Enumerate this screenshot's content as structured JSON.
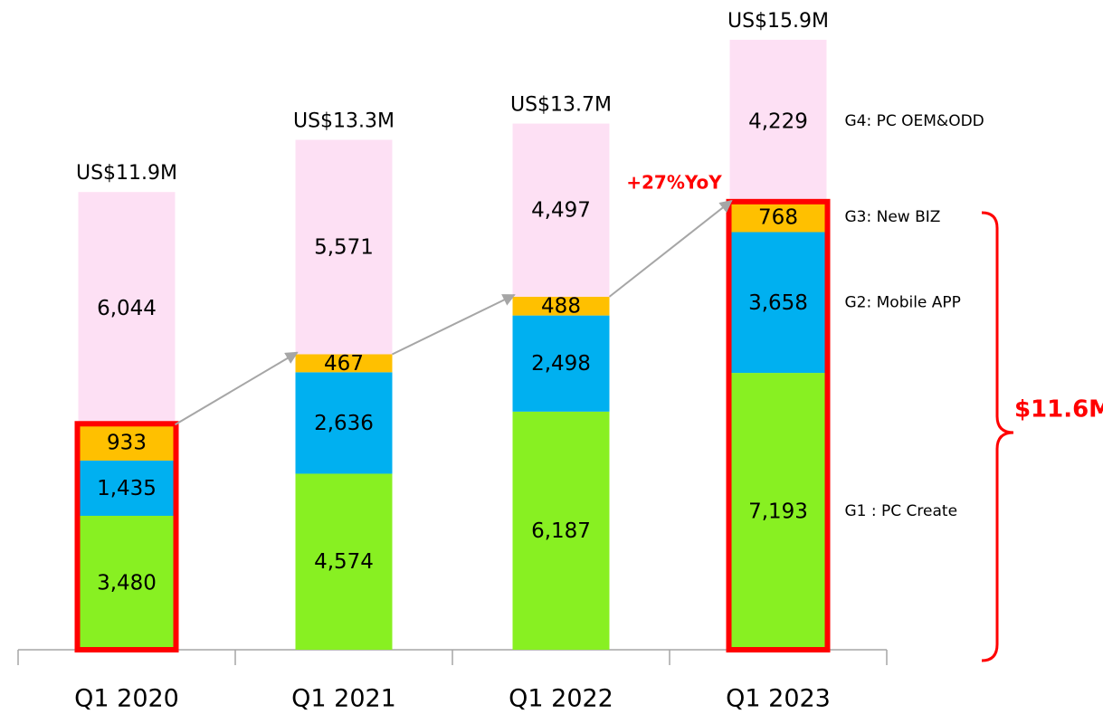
{
  "chart_data": {
    "type": "bar",
    "categories": [
      "Q1 2020",
      "Q1 2021",
      "Q1 2022",
      "Q1 2023"
    ],
    "series": [
      {
        "name": "G1 : PC Create",
        "color": "#88f022",
        "values": [
          3480,
          4574,
          6187,
          7193
        ],
        "value_labels": [
          "3,480",
          "4,574",
          "6,187",
          "7,193"
        ]
      },
      {
        "name": "G2: Mobile APP",
        "color": "#00b0f0",
        "values": [
          1435,
          2636,
          2498,
          3658
        ],
        "value_labels": [
          "1,435",
          "2,636",
          "2,498",
          "3,658"
        ]
      },
      {
        "name": "G3: New BIZ",
        "color": "#ffc000",
        "values": [
          933,
          467,
          488,
          768
        ],
        "value_labels": [
          "933",
          "467",
          "488",
          "768"
        ]
      },
      {
        "name": "G4: PC OEM&ODD",
        "color": "#fde0f4",
        "values": [
          6044,
          5571,
          4497,
          4229
        ],
        "value_labels": [
          "6,044",
          "5,571",
          "4,497",
          "4,229"
        ]
      }
    ],
    "total_labels": [
      "US$11.9M",
      "US$13.3M",
      "US$13.7M",
      "US$15.9M"
    ],
    "annotations": [
      "+27%YoY",
      "$11.6M"
    ],
    "ylim": [
      0,
      16000
    ]
  }
}
